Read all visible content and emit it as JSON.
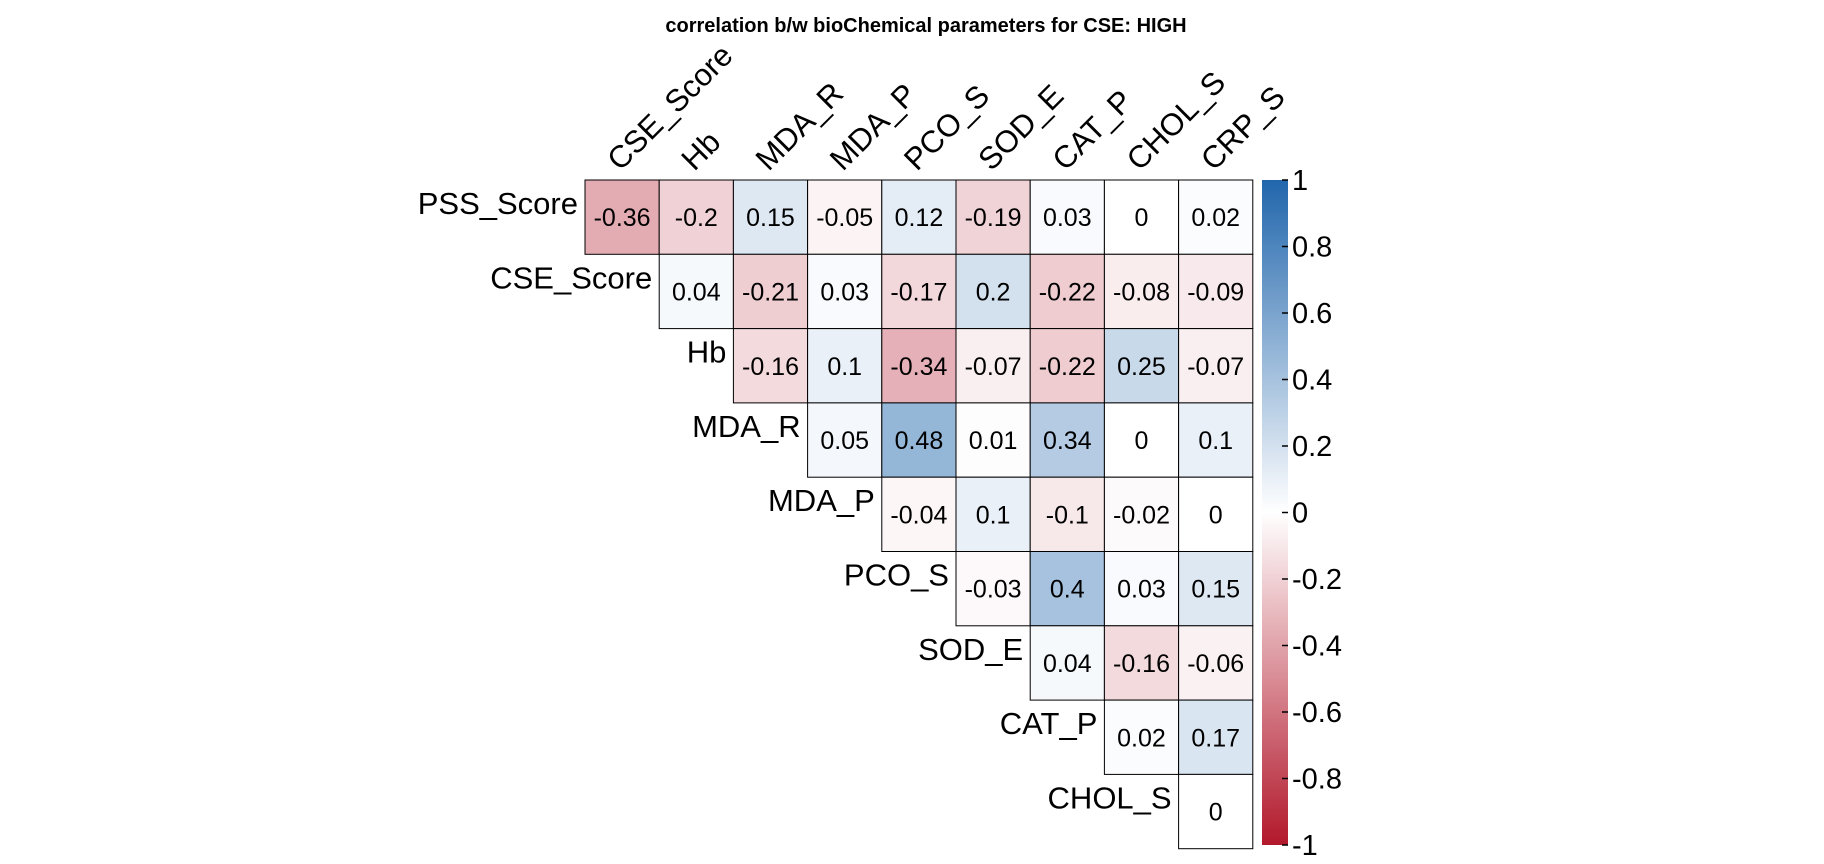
{
  "chart_data": {
    "type": "heatmap",
    "title": "correlation b/w bioChemical parameters for CSE: HIGH",
    "columns": [
      "CSE_Score",
      "Hb",
      "MDA_R",
      "MDA_P",
      "PCO_S",
      "SOD_E",
      "CAT_P",
      "CHOL_S",
      "CRP_S"
    ],
    "rows": [
      "PSS_Score",
      "CSE_Score",
      "Hb",
      "MDA_R",
      "MDA_P",
      "PCO_S",
      "SOD_E",
      "CAT_P",
      "CHOL_S"
    ],
    "values": [
      [
        -0.36,
        -0.2,
        0.15,
        -0.05,
        0.12,
        -0.19,
        0.03,
        0,
        0.02
      ],
      [
        null,
        0.04,
        -0.21,
        0.03,
        -0.17,
        0.2,
        -0.22,
        -0.08,
        -0.09
      ],
      [
        null,
        null,
        -0.16,
        0.1,
        -0.34,
        -0.07,
        -0.22,
        0.25,
        -0.07
      ],
      [
        null,
        null,
        null,
        0.05,
        0.48,
        0.01,
        0.34,
        0,
        0.1
      ],
      [
        null,
        null,
        null,
        null,
        -0.04,
        0.1,
        -0.1,
        -0.02,
        0
      ],
      [
        null,
        null,
        null,
        null,
        null,
        -0.03,
        0.4,
        0.03,
        0.15
      ],
      [
        null,
        null,
        null,
        null,
        null,
        null,
        0.04,
        -0.16,
        -0.06
      ],
      [
        null,
        null,
        null,
        null,
        null,
        null,
        null,
        0.02,
        0.17
      ],
      [
        null,
        null,
        null,
        null,
        null,
        null,
        null,
        null,
        0
      ]
    ],
    "color_range": [
      -1,
      1
    ],
    "colorbar_ticks": [
      "1",
      "0.8",
      "0.6",
      "0.4",
      "0.2",
      "0",
      "-0.2",
      "-0.4",
      "-0.6",
      "-0.8",
      "-1"
    ],
    "colors": {
      "negative": "#B2182B",
      "neutral": "#FFFFFF",
      "positive": "#2166AC"
    },
    "legend_position": "right"
  }
}
